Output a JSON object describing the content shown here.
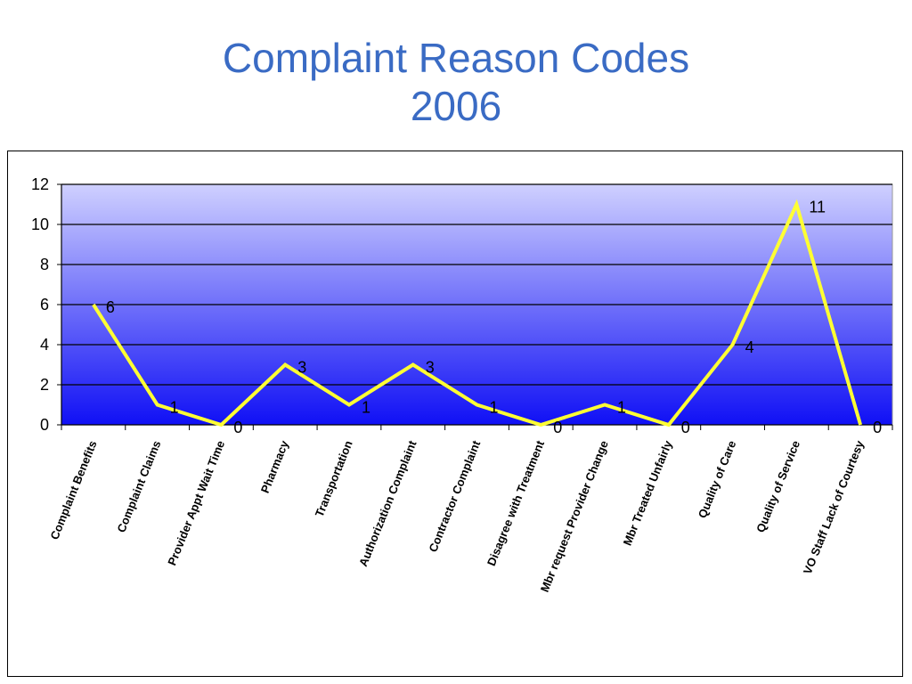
{
  "title_line1": "Complaint Reason Codes",
  "title_line2": "2006",
  "chart_data": {
    "type": "line",
    "title": "Complaint Reason Codes 2006",
    "categories": [
      "Complaint Benefits",
      "Complaint Claims",
      "Provider Appt Wait Time",
      "Pharmacy",
      "Transportation",
      "Authorization Complaint",
      "Contractor Complaint",
      "Disagree with Treatment",
      "Mbr request Provider Change",
      "Mbr Treated Unfairly",
      "Quality of Care",
      "Quality of Service",
      "VO Staff Lack of Courtesy"
    ],
    "values": [
      6,
      1,
      0,
      3,
      1,
      3,
      1,
      0,
      1,
      0,
      4,
      11,
      0
    ],
    "ylim": [
      0,
      12
    ],
    "yticks": [
      0,
      2,
      4,
      6,
      8,
      10,
      12
    ],
    "xlabel": "",
    "ylabel": "",
    "grid": true,
    "legend": "none",
    "colors": {
      "line": "#ffff33",
      "plot_top": "#cfd0ff",
      "plot_bottom": "#1010f5",
      "title": "#3a6bc4"
    }
  }
}
